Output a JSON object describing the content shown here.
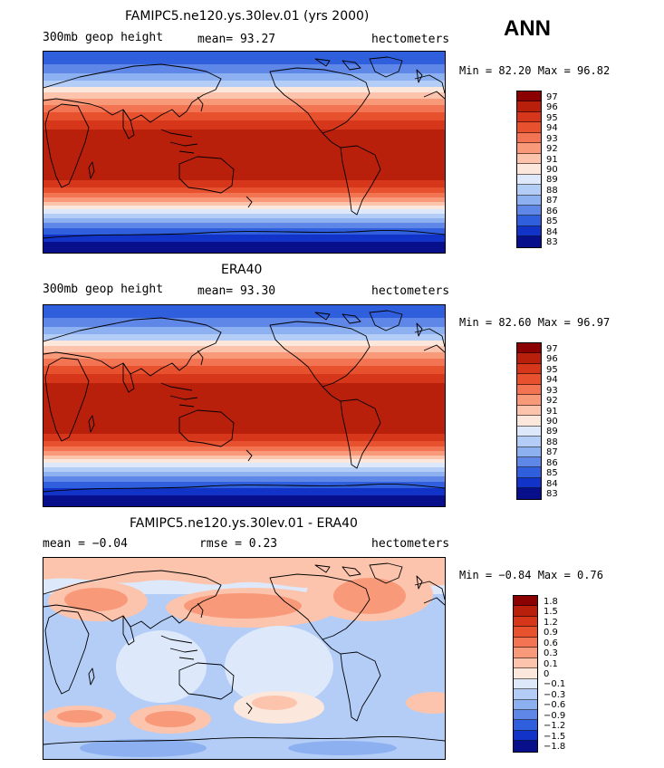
{
  "season": "ANN",
  "panels": [
    {
      "title": "FAMIPC5.ne120.ys.30lev.01 (yrs 2000)",
      "left_label": "300mb geop height",
      "center_label": "mean=  93.27",
      "right_label": "hectometers",
      "stats": "Min =  82.20 Max =  96.82",
      "levels": [
        "97",
        "96",
        "95",
        "94",
        "93",
        "92",
        "91",
        "90",
        "89",
        "88",
        "87",
        "86",
        "85",
        "84",
        "83"
      ]
    },
    {
      "title": "ERA40",
      "left_label": "300mb geop height",
      "center_label": "mean=  93.30",
      "right_label": "hectometers",
      "stats": "Min =  82.60 Max =  96.97",
      "levels": [
        "97",
        "96",
        "95",
        "94",
        "93",
        "92",
        "91",
        "90",
        "89",
        "88",
        "87",
        "86",
        "85",
        "84",
        "83"
      ]
    },
    {
      "title": "FAMIPC5.ne120.ys.30lev.01 - ERA40",
      "left_label": "mean =  −0.04",
      "center_label": "rmse =   0.23",
      "right_label": "hectometers",
      "stats": "Min =  −0.84 Max =   0.76",
      "levels": [
        "1.8",
        "1.5",
        "1.2",
        "0.9",
        "0.6",
        "0.3",
        "0.1",
        "0",
        "−0.1",
        "−0.3",
        "−0.6",
        "−0.9",
        "−1.2",
        "−1.5",
        "−1.8"
      ]
    }
  ],
  "palette": [
    "#8b0000",
    "#b8200c",
    "#d6361a",
    "#e8512e",
    "#f27452",
    "#f89a7a",
    "#fcc4ac",
    "#fbe7dc",
    "#dde9fb",
    "#b4cdf7",
    "#8db0f1",
    "#5f87e8",
    "#2f5fdc",
    "#1233c8",
    "#07108a"
  ]
}
